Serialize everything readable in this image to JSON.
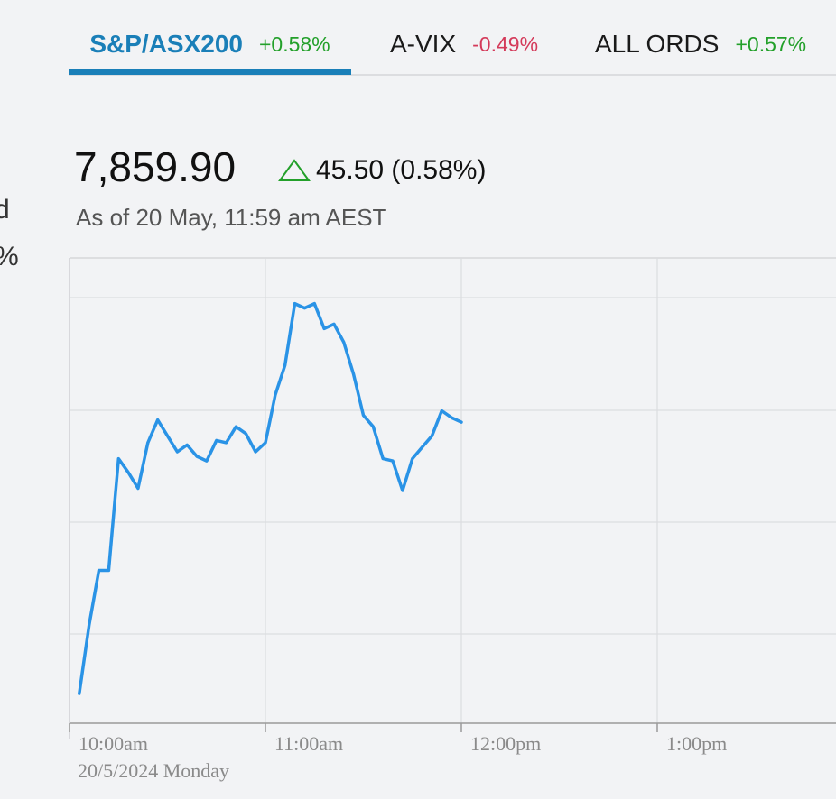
{
  "left_fragment": {
    "line1": "d",
    "line2": "%"
  },
  "tabs": [
    {
      "name": "S&P/ASX200",
      "change": "+0.58%",
      "direction": "up",
      "active": true
    },
    {
      "name": "A-VIX",
      "change": "-0.49%",
      "direction": "down",
      "active": false
    },
    {
      "name": "ALL ORDS",
      "change": "+0.57%",
      "direction": "up",
      "active": false
    }
  ],
  "quote": {
    "value": "7,859.90",
    "change": "45.50 (0.58%)",
    "change_icon": "triangle-up-icon",
    "as_of": "As of 20 May, 11:59 am AEST"
  },
  "colors": {
    "accent": "#1a7fb8",
    "line": "#2a93e6",
    "up": "#23a02a",
    "down": "#d43a5a"
  },
  "chart_data": {
    "type": "line",
    "x_tick_labels": [
      "10:00am",
      "11:00am",
      "12:00pm",
      "1:00pm"
    ],
    "x_tick_minutes": [
      0,
      60,
      120,
      180
    ],
    "date_label": "20/5/2024 Monday",
    "xlim_minutes": [
      0,
      235
    ],
    "ylim": [
      7784,
      7886
    ],
    "grid": true,
    "series": [
      {
        "values": [
          [
            3,
            7790.5
          ],
          [
            6,
            7805.5
          ],
          [
            9,
            7817.5
          ],
          [
            12,
            7817.5
          ],
          [
            15,
            7842.0
          ],
          [
            18,
            7839.0
          ],
          [
            21,
            7835.5
          ],
          [
            24,
            7845.5
          ],
          [
            27,
            7850.5
          ],
          [
            30,
            7847.0
          ],
          [
            33,
            7843.5
          ],
          [
            36,
            7845.0
          ],
          [
            39,
            7842.5
          ],
          [
            42,
            7841.5
          ],
          [
            45,
            7846.0
          ],
          [
            48,
            7845.5
          ],
          [
            51,
            7849.0
          ],
          [
            54,
            7847.5
          ],
          [
            57,
            7843.5
          ],
          [
            60,
            7845.5
          ],
          [
            63,
            7856.0
          ],
          [
            66,
            7862.5
          ],
          [
            69,
            7876.0
          ],
          [
            72,
            7875.0
          ],
          [
            75,
            7876.0
          ],
          [
            78,
            7870.5
          ],
          [
            81,
            7871.5
          ],
          [
            84,
            7867.5
          ],
          [
            87,
            7860.5
          ],
          [
            90,
            7851.5
          ],
          [
            93,
            7849.0
          ],
          [
            96,
            7842.0
          ],
          [
            99,
            7841.5
          ],
          [
            102,
            7835.0
          ],
          [
            105,
            7842.0
          ],
          [
            108,
            7844.5
          ],
          [
            111,
            7847.0
          ],
          [
            114,
            7852.5
          ],
          [
            117,
            7851.0
          ],
          [
            120,
            7850.0
          ]
        ]
      }
    ]
  }
}
